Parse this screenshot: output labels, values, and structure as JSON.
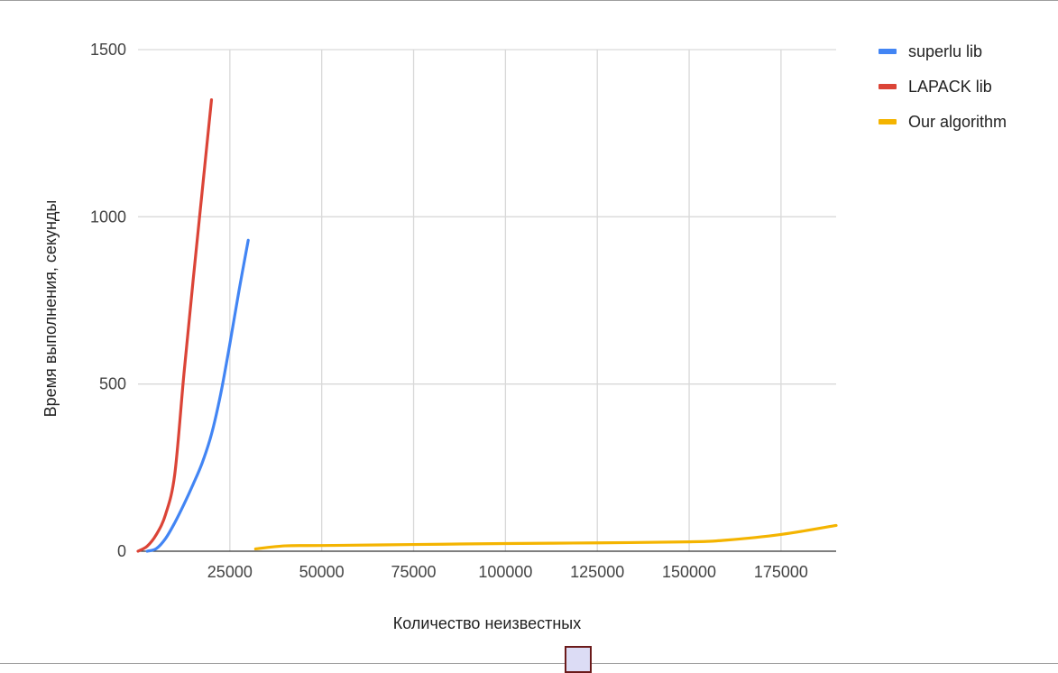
{
  "chart_data": {
    "type": "line",
    "title": "",
    "xlabel": "Количество неизвестных",
    "ylabel": "Время выполнения, секунды",
    "xlim": [
      0,
      190000
    ],
    "ylim": [
      0,
      1500
    ],
    "x_ticks": [
      25000,
      50000,
      75000,
      100000,
      125000,
      150000,
      175000
    ],
    "y_ticks": [
      0,
      500,
      1000,
      1500
    ],
    "grid": true,
    "legend_position": "top-right",
    "series": [
      {
        "name": "superlu lib",
        "color": "#4285f4",
        "x": [
          2500,
          5000,
          7500,
          10000,
          12500,
          15000,
          17500,
          20000,
          22500,
          25000,
          27500,
          30000
        ],
        "y": [
          0,
          8,
          38,
          85,
          140,
          200,
          265,
          350,
          470,
          620,
          780,
          930
        ]
      },
      {
        "name": "LAPACK lib",
        "color": "#db4437",
        "x": [
          0,
          2500,
          5000,
          7500,
          10000,
          12500,
          15000,
          17500,
          20000
        ],
        "y": [
          0,
          15,
          50,
          110,
          230,
          530,
          810,
          1080,
          1350
        ]
      },
      {
        "name": "Our algorithm",
        "color": "#f4b400",
        "x": [
          32000,
          40000,
          50000,
          75000,
          100000,
          125000,
          150000,
          160000,
          175000,
          190000
        ],
        "y": [
          7,
          16,
          17,
          20,
          23,
          25,
          28,
          33,
          50,
          77
        ]
      }
    ]
  }
}
